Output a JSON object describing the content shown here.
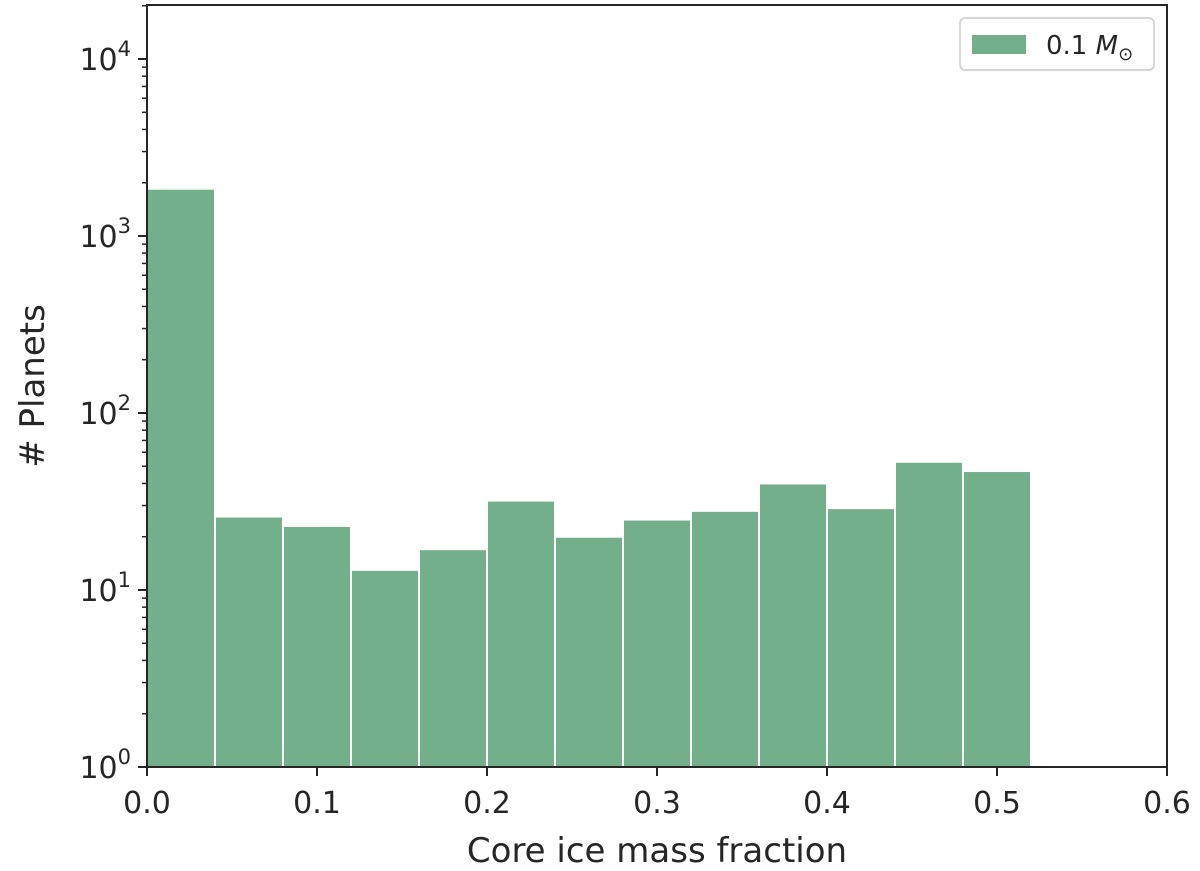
{
  "chart_data": {
    "type": "bar",
    "title": "",
    "xlabel": "Core ice mass fraction",
    "ylabel": "# Planets",
    "xlim": [
      0.0,
      0.6
    ],
    "ylim": [
      1,
      20000
    ],
    "yscale": "log",
    "grid": false,
    "legend_position": "top-right",
    "bar_color": "#72af8a",
    "x_ticks": [
      "0.0",
      "0.1",
      "0.2",
      "0.3",
      "0.4",
      "0.5",
      "0.6"
    ],
    "y_ticks": [
      {
        "base": "10",
        "exp": "0"
      },
      {
        "base": "10",
        "exp": "1"
      },
      {
        "base": "10",
        "exp": "2"
      },
      {
        "base": "10",
        "exp": "3"
      },
      {
        "base": "10",
        "exp": "4"
      }
    ],
    "series": [
      {
        "name": "0.1 M⊙",
        "bins": [
          {
            "start": 0.0,
            "end": 0.04,
            "value": 1850
          },
          {
            "start": 0.04,
            "end": 0.08,
            "value": 26
          },
          {
            "start": 0.08,
            "end": 0.12,
            "value": 23
          },
          {
            "start": 0.12,
            "end": 0.16,
            "value": 13
          },
          {
            "start": 0.16,
            "end": 0.2,
            "value": 17
          },
          {
            "start": 0.2,
            "end": 0.24,
            "value": 32
          },
          {
            "start": 0.24,
            "end": 0.28,
            "value": 20
          },
          {
            "start": 0.28,
            "end": 0.32,
            "value": 25
          },
          {
            "start": 0.32,
            "end": 0.36,
            "value": 28
          },
          {
            "start": 0.36,
            "end": 0.4,
            "value": 40
          },
          {
            "start": 0.4,
            "end": 0.44,
            "value": 29
          },
          {
            "start": 0.44,
            "end": 0.48,
            "value": 53
          },
          {
            "start": 0.48,
            "end": 0.52,
            "value": 47
          }
        ]
      }
    ]
  },
  "legend": {
    "label_prefix": "0.1 ",
    "label_symbol": "M",
    "label_subscript": "⊙"
  }
}
